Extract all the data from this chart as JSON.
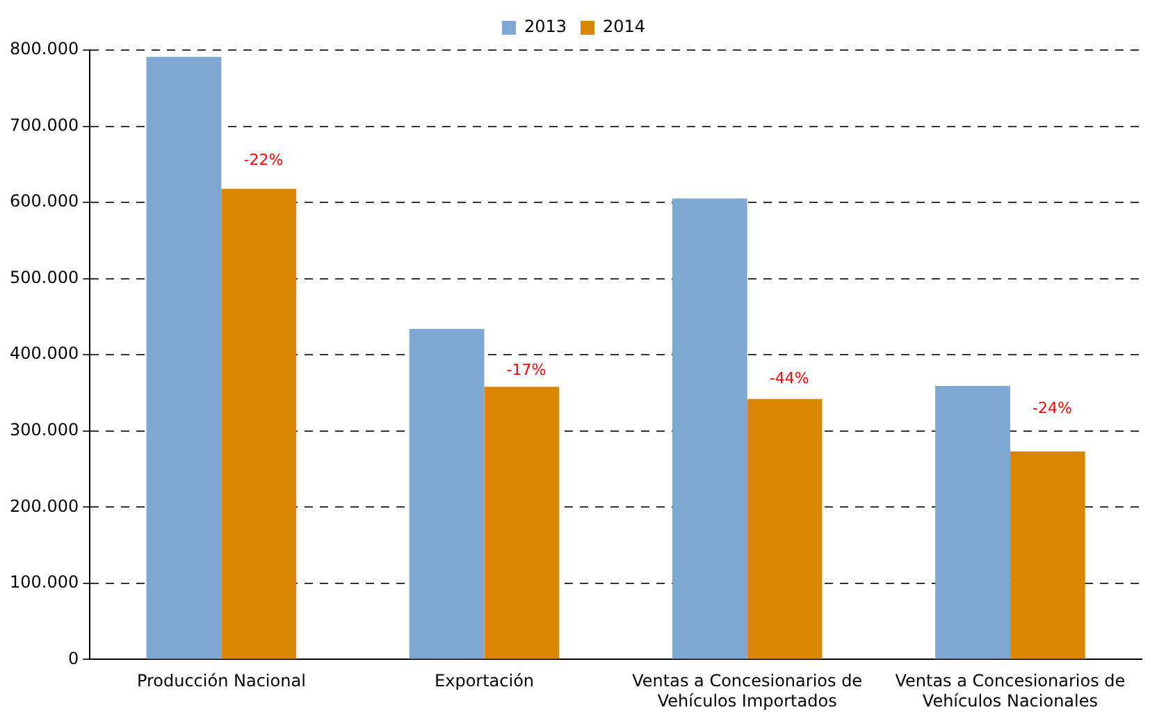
{
  "chart_data": {
    "type": "bar",
    "categories": [
      "Producción Nacional",
      "Exportación",
      "Ventas a Concesionarios de Vehículos Importados",
      "Ventas a Concesionarios de Vehículos Nacionales"
    ],
    "series": [
      {
        "name": "2013",
        "color": "#7fa7d3",
        "values": [
          791000,
          434000,
          605000,
          359000
        ]
      },
      {
        "name": "2014",
        "color": "#d98600",
        "values": [
          618000,
          358000,
          342000,
          273000
        ]
      }
    ],
    "ylim": [
      0,
      800000
    ],
    "yticks": [
      {
        "value": 0,
        "label": "0"
      },
      {
        "value": 100000,
        "label": "100.000"
      },
      {
        "value": 200000,
        "label": "200.000"
      },
      {
        "value": 300000,
        "label": "300.000"
      },
      {
        "value": 400000,
        "label": "400.000"
      },
      {
        "value": 500000,
        "label": "500.000"
      },
      {
        "value": 600000,
        "label": "600.000"
      },
      {
        "value": 700000,
        "label": "700.000"
      },
      {
        "value": 800000,
        "label": "800.000"
      }
    ],
    "grid": "y",
    "line_style": "dashed",
    "legend": "top",
    "annotations": [
      {
        "text": "-22%",
        "x": "Producción Nacional",
        "y": 655000
      },
      {
        "text": "-17%",
        "x": "Exportación",
        "y": 379000
      },
      {
        "text": "-44%",
        "x": "Ventas a Concesionarios de Vehículos Importados",
        "y": 368000
      },
      {
        "text": "-24%",
        "x": "Ventas a Concesionarios de Vehículos Nacionales",
        "y": 329000
      }
    ]
  }
}
